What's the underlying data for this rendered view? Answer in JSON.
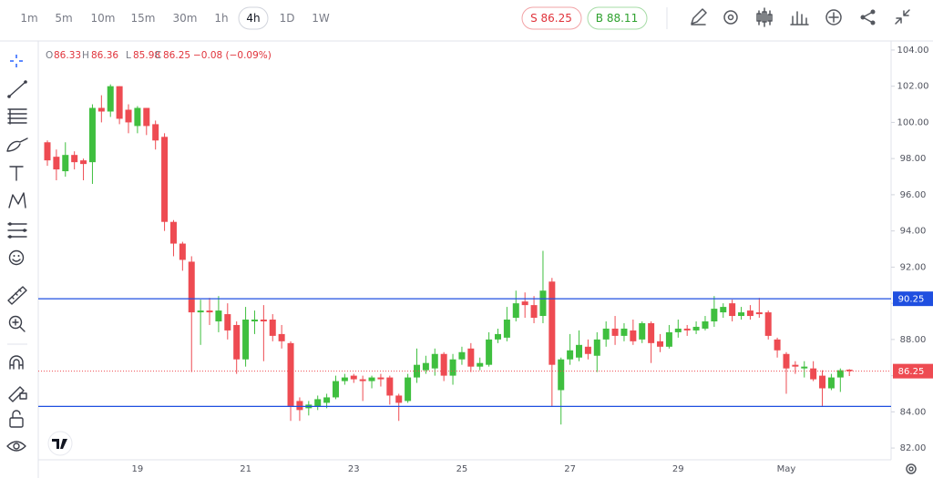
{
  "toolbar": {
    "timeframes": [
      "1m",
      "5m",
      "10m",
      "15m",
      "30m",
      "1h",
      "4h",
      "1D",
      "1W"
    ],
    "selected": 6,
    "sell": "S 86.25",
    "buy": "B 88.11"
  },
  "legend": {
    "items": [
      {
        "key": "O",
        "value": "86.33"
      },
      {
        "key": "H",
        "value": "86.36"
      },
      {
        "key": "L",
        "value": "85.98"
      },
      {
        "key": "C",
        "value": "86.25"
      }
    ],
    "change": "−0.08 (−0.09%)"
  },
  "chart_data": {
    "type": "candlestick",
    "categories": [
      null,
      null,
      null,
      null,
      null,
      null,
      null,
      null,
      null,
      null,
      "19",
      null,
      null,
      null,
      null,
      null,
      null,
      null,
      null,
      null,
      null,
      null,
      "21",
      null,
      null,
      null,
      null,
      null,
      null,
      null,
      null,
      null,
      null,
      null,
      "23",
      null,
      null,
      null,
      null,
      null,
      null,
      null,
      null,
      null,
      null,
      null,
      "25",
      null,
      null,
      null,
      null,
      null,
      null,
      null,
      null,
      null,
      null,
      null,
      "27",
      null,
      null,
      null,
      null,
      null,
      null,
      null,
      null,
      null,
      null,
      null,
      "29",
      null,
      null,
      null,
      null,
      null,
      null,
      null,
      null,
      null,
      null,
      null,
      "May",
      null,
      null,
      null,
      null,
      null,
      null,
      null
    ],
    "open": [
      98.9,
      98.1,
      97.3,
      98.2,
      97.9,
      97.8,
      100.8,
      100.6,
      102.0,
      100.7,
      99.8,
      100.8,
      99.9,
      99.2,
      94.5,
      93.3,
      92.3,
      89.5,
      89.6,
      89.0,
      89.4,
      88.8,
      86.9,
      89.0,
      89.1,
      89.1,
      88.3,
      87.8,
      84.6,
      84.2,
      84.3,
      84.5,
      84.8,
      85.7,
      86.0,
      85.8,
      85.7,
      85.9,
      85.9,
      84.9,
      84.6,
      85.9,
      86.3,
      86.4,
      87.2,
      86.0,
      86.9,
      87.5,
      86.5,
      86.6,
      88.0,
      88.1,
      89.2,
      90.1,
      89.9,
      89.3,
      91.2,
      85.2,
      86.9,
      87.0,
      87.6,
      87.1,
      88.0,
      88.6,
      88.2,
      88.5,
      88.0,
      88.9,
      87.9,
      87.6,
      88.4,
      88.6,
      88.5,
      88.6,
      89.0,
      89.5,
      90.0,
      89.3,
      89.6,
      89.5,
      89.5,
      88.0,
      87.2,
      86.6,
      86.4,
      86.4,
      86.0,
      85.3,
      85.9,
      86.33
    ],
    "high": [
      99.0,
      98.5,
      98.9,
      98.4,
      98.0,
      101.0,
      101.5,
      102.1,
      102.0,
      101.0,
      100.9,
      100.8,
      100.1,
      99.4,
      94.6,
      93.4,
      92.6,
      90.2,
      90.3,
      90.4,
      90.0,
      89.0,
      89.8,
      89.6,
      89.9,
      89.4,
      88.8,
      87.9,
      84.8,
      84.6,
      84.9,
      85.0,
      86.0,
      86.1,
      86.1,
      86.0,
      86.0,
      86.1,
      86.0,
      85.0,
      86.1,
      87.5,
      87.1,
      87.5,
      87.3,
      87.2,
      87.6,
      87.8,
      87.0,
      88.4,
      88.6,
      89.8,
      90.7,
      90.6,
      90.4,
      92.9,
      91.4,
      87.0,
      88.3,
      88.5,
      88.0,
      88.4,
      89.0,
      89.3,
      88.9,
      89.1,
      89.0,
      89.0,
      88.3,
      88.8,
      89.1,
      88.8,
      89.0,
      89.3,
      90.4,
      90.0,
      90.2,
      89.8,
      89.9,
      90.3,
      89.6,
      88.1,
      87.3,
      86.8,
      86.8,
      86.8,
      86.3,
      86.1,
      86.4,
      86.36
    ],
    "low": [
      97.6,
      96.8,
      97.0,
      97.4,
      96.8,
      96.6,
      100.0,
      100.3,
      99.9,
      99.4,
      99.4,
      99.3,
      98.5,
      94.0,
      92.6,
      91.8,
      86.2,
      87.7,
      88.8,
      88.4,
      88.0,
      86.1,
      86.5,
      88.3,
      86.8,
      87.9,
      87.5,
      83.5,
      83.5,
      83.8,
      84.1,
      84.2,
      84.7,
      85.5,
      85.6,
      84.6,
      85.3,
      85.4,
      84.4,
      83.5,
      84.5,
      85.6,
      86.1,
      86.0,
      85.7,
      85.5,
      86.6,
      86.2,
      86.3,
      86.5,
      87.8,
      87.9,
      89.0,
      89.2,
      88.9,
      88.9,
      84.3,
      83.3,
      86.6,
      86.8,
      86.9,
      86.2,
      87.6,
      87.7,
      87.9,
      87.7,
      87.8,
      86.7,
      87.3,
      87.5,
      88.1,
      88.2,
      88.3,
      88.5,
      88.7,
      89.2,
      89.0,
      89.1,
      89.1,
      89.2,
      88.0,
      87.0,
      85.0,
      86.1,
      85.9,
      85.7,
      84.3,
      85.2,
      85.1,
      85.98
    ],
    "close": [
      97.9,
      97.4,
      98.2,
      97.8,
      97.7,
      100.8,
      100.6,
      102.0,
      100.2,
      100.0,
      100.8,
      99.8,
      99.0,
      94.5,
      93.3,
      92.4,
      89.5,
      89.6,
      89.5,
      89.6,
      88.5,
      86.9,
      89.1,
      89.1,
      89.0,
      88.2,
      87.9,
      84.3,
      84.1,
      84.4,
      84.7,
      84.8,
      85.7,
      85.9,
      85.8,
      85.7,
      85.9,
      85.8,
      84.9,
      84.5,
      85.9,
      86.6,
      86.7,
      87.2,
      86.0,
      86.9,
      87.3,
      86.5,
      86.7,
      88.0,
      88.3,
      89.1,
      90.0,
      89.9,
      89.2,
      90.7,
      86.6,
      86.9,
      87.4,
      87.7,
      87.2,
      88.0,
      88.6,
      88.2,
      88.6,
      87.9,
      88.9,
      87.8,
      87.6,
      88.4,
      88.6,
      88.5,
      88.7,
      89.0,
      89.7,
      89.8,
      89.3,
      89.5,
      89.3,
      89.4,
      88.2,
      87.4,
      86.4,
      86.5,
      86.5,
      85.8,
      85.3,
      85.9,
      86.3,
      86.25
    ],
    "up_color": "#3fbf3f",
    "down_color": "#ee4b52",
    "ylim": [
      81.35,
      104.5
    ],
    "yticks": [
      {
        "value": 82,
        "label": "82.00"
      },
      {
        "value": 84,
        "label": "84.00"
      },
      {
        "value": 86,
        "label": "86.00"
      },
      {
        "value": 88,
        "label": "88.00"
      },
      {
        "value": 90,
        "label": "90.00"
      },
      {
        "value": 92,
        "label": "92.00"
      },
      {
        "value": 94,
        "label": "94.00"
      },
      {
        "value": 96,
        "label": "96.00"
      },
      {
        "value": 98,
        "label": "98.00"
      },
      {
        "value": 100,
        "label": "100.00"
      },
      {
        "value": 102,
        "label": "102.00"
      },
      {
        "value": 104,
        "label": "104.00"
      }
    ],
    "grid": false,
    "hlines": [
      {
        "value": 90.25,
        "color": "#1f4fe0",
        "labeled": true
      },
      {
        "value": 84.3,
        "color": "#1f4fe0",
        "labeled": false
      }
    ],
    "price_line": {
      "value": 86.25,
      "color": "#ee4b52"
    }
  }
}
